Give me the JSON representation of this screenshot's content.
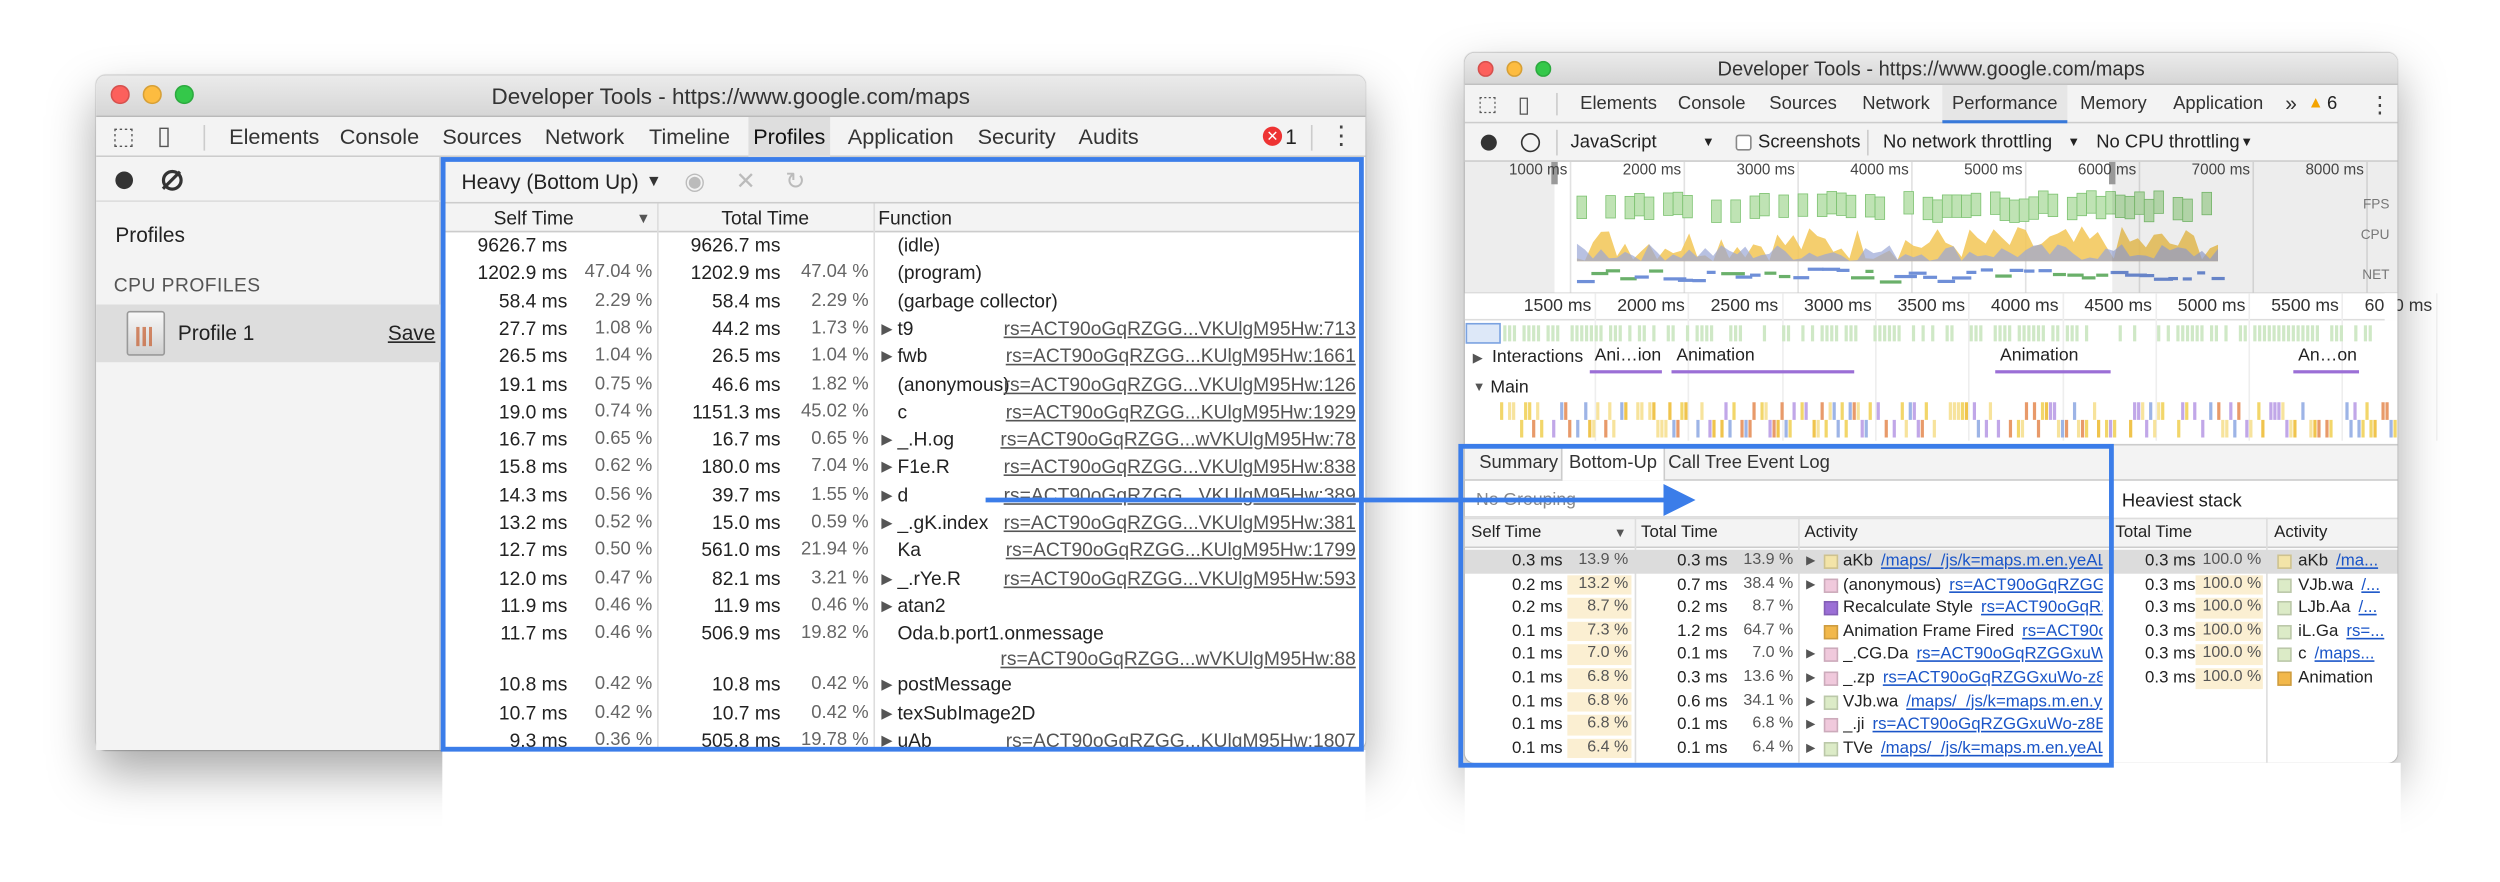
{
  "left_window": {
    "title": "Developer Tools - https://www.google.com/maps",
    "tabs": [
      "Elements",
      "Console",
      "Sources",
      "Network",
      "Timeline",
      "Profiles",
      "Application",
      "Security",
      "Audits"
    ],
    "active_tab": "Profiles",
    "error_count": "1",
    "sidebar": {
      "heading": "Profiles",
      "section": "CPU PROFILES",
      "profile": "Profile 1",
      "save": "Save"
    },
    "view_mode": "Heavy (Bottom Up)",
    "columns": [
      "Self Time",
      "Total Time",
      "Function"
    ],
    "rows": [
      {
        "self": "9626.7 ms",
        "total": "9626.7 ms",
        "function": "(idle)"
      },
      {
        "self": "1202.9 ms",
        "self_pct": "47.04 %",
        "total": "1202.9 ms",
        "total_pct": "47.04 %",
        "function": "(program)"
      },
      {
        "self": "58.4 ms",
        "self_pct": "2.29 %",
        "total": "58.4 ms",
        "total_pct": "2.29 %",
        "function": "(garbage collector)"
      },
      {
        "self": "27.7 ms",
        "self_pct": "1.08 %",
        "total": "44.2 ms",
        "total_pct": "1.73 %",
        "function": "t9",
        "source": "rs=ACT90oGqRZGG...VKUlgM95Hw:713",
        "expandable": true
      },
      {
        "self": "26.5 ms",
        "self_pct": "1.04 %",
        "total": "26.5 ms",
        "total_pct": "1.04 %",
        "function": "fwb",
        "source": "rs=ACT90oGqRZGG...KUlgM95Hw:1661",
        "expandable": true
      },
      {
        "self": "19.1 ms",
        "self_pct": "0.75 %",
        "total": "46.6 ms",
        "total_pct": "1.82 %",
        "function": "(anonymous)",
        "source": "rs=ACT90oGqRZGG...VKUlgM95Hw:126"
      },
      {
        "self": "19.0 ms",
        "self_pct": "0.74 %",
        "total": "1151.3 ms",
        "total_pct": "45.02 %",
        "function": "c",
        "source": "rs=ACT90oGqRZGG...KUlgM95Hw:1929"
      },
      {
        "self": "16.7 ms",
        "self_pct": "0.65 %",
        "total": "16.7 ms",
        "total_pct": "0.65 %",
        "function": "_.H.og",
        "source": "rs=ACT90oGqRZGG...wVKUlgM95Hw:78",
        "expandable": true
      },
      {
        "self": "15.8 ms",
        "self_pct": "0.62 %",
        "total": "180.0 ms",
        "total_pct": "7.04 %",
        "function": "F1e.R",
        "source": "rs=ACT90oGqRZGG...VKUlgM95Hw:838",
        "expandable": true
      },
      {
        "self": "14.3 ms",
        "self_pct": "0.56 %",
        "total": "39.7 ms",
        "total_pct": "1.55 %",
        "function": "d",
        "source": "rs=ACT90oGqRZGG...VKUlgM95Hw:389",
        "expandable": true
      },
      {
        "self": "13.2 ms",
        "self_pct": "0.52 %",
        "total": "15.0 ms",
        "total_pct": "0.59 %",
        "function": "_.gK.index",
        "source": "rs=ACT90oGqRZGG...VKUlgM95Hw:381",
        "expandable": true
      },
      {
        "self": "12.7 ms",
        "self_pct": "0.50 %",
        "total": "561.0 ms",
        "total_pct": "21.94 %",
        "function": "Ka",
        "source": "rs=ACT90oGqRZGG...KUlgM95Hw:1799"
      },
      {
        "self": "12.0 ms",
        "self_pct": "0.47 %",
        "total": "82.1 ms",
        "total_pct": "3.21 %",
        "function": "_.rYe.R",
        "source": "rs=ACT90oGqRZGG...VKUlgM95Hw:593",
        "expandable": true
      },
      {
        "self": "11.9 ms",
        "self_pct": "0.46 %",
        "total": "11.9 ms",
        "total_pct": "0.46 %",
        "function": "atan2",
        "expandable": true
      },
      {
        "self": "11.7 ms",
        "self_pct": "0.46 %",
        "total": "506.9 ms",
        "total_pct": "19.82 %",
        "function": "Oda.b.port1.onmessage",
        "source": "rs=ACT90oGqRZGG...wVKUlgM95Hw:88",
        "source_wrapped": true
      },
      {
        "self": "10.8 ms",
        "self_pct": "0.42 %",
        "total": "10.8 ms",
        "total_pct": "0.42 %",
        "function": "postMessage",
        "expandable": true
      },
      {
        "self": "10.7 ms",
        "self_pct": "0.42 %",
        "total": "10.7 ms",
        "total_pct": "0.42 %",
        "function": "texSubImage2D",
        "expandable": true
      },
      {
        "self": "9.3 ms",
        "self_pct": "0.36 %",
        "total": "505.8 ms",
        "total_pct": "19.78 %",
        "function": "uAb",
        "source": "rs=ACT90oGqRZGG...KUlgM95Hw:1807",
        "expandable": true
      }
    ]
  },
  "right_window": {
    "title": "Developer Tools - https://www.google.com/maps",
    "tabs": [
      "Elements",
      "Console",
      "Sources",
      "Network",
      "Performance",
      "Memory",
      "Application"
    ],
    "active_tab": "Performance",
    "more": "»",
    "warning_count": "6",
    "toolbar": {
      "target": "JavaScript",
      "screenshots": "Screenshots",
      "network": "No network throttling",
      "cpu": "No CPU throttling"
    },
    "overview_ticks": [
      "1000 ms",
      "2000 ms",
      "3000 ms",
      "4000 ms",
      "5000 ms",
      "6000 ms",
      "7000 ms",
      "8000 ms"
    ],
    "overview_labels": [
      "FPS",
      "CPU",
      "NET"
    ],
    "ruler_ticks": [
      "1500 ms",
      "2000 ms",
      "2500 ms",
      "3000 ms",
      "3500 ms",
      "4000 ms",
      "4500 ms",
      "5000 ms",
      "5500 ms",
      "6000 ms"
    ],
    "interactions_label": "Interactions",
    "interactions": [
      "Ani…ion",
      "Animation",
      "Animation",
      "An…on"
    ],
    "main_label": "Main",
    "bottom_tabs": [
      "Summary",
      "Bottom-Up",
      "Call Tree",
      "Event Log"
    ],
    "active_bottom_tab": "Bottom-Up",
    "grouping": "No Grouping",
    "heaviest_title": "Heaviest stack",
    "columns": [
      "Self Time",
      "Total Time",
      "Activity"
    ],
    "heaviest_columns": [
      "Total Time",
      "Activity"
    ],
    "rows": [
      {
        "self": "0.3 ms",
        "self_pct": "13.9 %",
        "total": "0.3 ms",
        "total_pct": "13.9 %",
        "activity": "aKb",
        "source": "/maps/_/js/k=maps.m.en.yeALR...",
        "color": "#f3e4a8",
        "expandable": true
      },
      {
        "self": "0.2 ms",
        "self_pct": "13.2 %",
        "total": "0.7 ms",
        "total_pct": "38.4 %",
        "activity": "(anonymous)",
        "source": "rs=ACT90oGqRZGGx...",
        "color": "#f0c9dc",
        "expandable": true
      },
      {
        "self": "0.2 ms",
        "self_pct": "8.7 %",
        "total": "0.2 ms",
        "total_pct": "8.7 %",
        "activity": "Recalculate Style",
        "source": "rs=ACT90oGqRZ...",
        "color": "#9b6fd6"
      },
      {
        "self": "0.1 ms",
        "self_pct": "7.3 %",
        "total": "1.2 ms",
        "total_pct": "64.7 %",
        "activity": "Animation Frame Fired",
        "source": "rs=ACT90o...",
        "color": "#f2b84b"
      },
      {
        "self": "0.1 ms",
        "self_pct": "7.0 %",
        "total": "0.1 ms",
        "total_pct": "7.0 %",
        "activity": "_.CG.Da",
        "source": "rs=ACT90oGqRZGGxuWo...",
        "color": "#f0c9dc",
        "expandable": true
      },
      {
        "self": "0.1 ms",
        "self_pct": "6.8 %",
        "total": "0.3 ms",
        "total_pct": "13.6 %",
        "activity": "_.zp",
        "source": "rs=ACT90oGqRZGGxuWo-z8B...",
        "color": "#f0c9dc",
        "expandable": true
      },
      {
        "self": "0.1 ms",
        "self_pct": "6.8 %",
        "total": "0.6 ms",
        "total_pct": "34.1 %",
        "activity": "VJb.wa",
        "source": "/maps/_/js/k=maps.m.en.ye...",
        "color": "#dcebc7",
        "expandable": true
      },
      {
        "self": "0.1 ms",
        "self_pct": "6.8 %",
        "total": "0.1 ms",
        "total_pct": "6.8 %",
        "activity": "_.ji",
        "source": "rs=ACT90oGqRZGGxuWo-z8Bl...",
        "color": "#f0c9dc",
        "expandable": true
      },
      {
        "self": "0.1 ms",
        "self_pct": "6.4 %",
        "total": "0.1 ms",
        "total_pct": "6.4 %",
        "activity": "TVe",
        "source": "/maps/_/js/k=maps.m.en.yeALR...",
        "color": "#dcebc7",
        "expandable": true
      }
    ],
    "heaviest_rows": [
      {
        "total": "0.3 ms",
        "total_pct": "100.0 %",
        "activity": "aKb",
        "source": "/ma...",
        "color": "#f3e4a8"
      },
      {
        "total": "0.3 ms",
        "total_pct": "100.0 %",
        "activity": "VJb.wa",
        "source": "/...",
        "color": "#dcebc7"
      },
      {
        "total": "0.3 ms",
        "total_pct": "100.0 %",
        "activity": "LJb.Aa",
        "source": "/...",
        "color": "#dcebc7"
      },
      {
        "total": "0.3 ms",
        "total_pct": "100.0 %",
        "activity": "iL.Ga",
        "source": "rs=...",
        "color": "#dcebc7"
      },
      {
        "total": "0.3 ms",
        "total_pct": "100.0 %",
        "activity": "c",
        "source": "/maps...",
        "color": "#dcebc7"
      },
      {
        "total": "0.3 ms",
        "total_pct": "100.0 %",
        "activity": "Animation",
        "color": "#f2b84b"
      }
    ]
  }
}
